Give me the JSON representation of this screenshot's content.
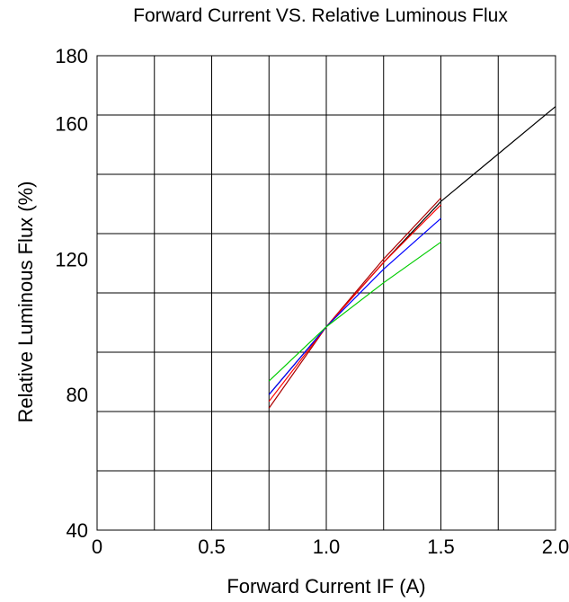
{
  "chart_data": {
    "type": "line",
    "title": "Forward Current VS. Relative Luminous Flux",
    "xlabel": "Forward  Current  IF  (A)",
    "ylabel": "Relative  Luminous  Flux  (%)",
    "xlim": [
      0,
      2.0
    ],
    "ylim": [
      40,
      180
    ],
    "grid": true,
    "x_ticks": [
      {
        "value": 0,
        "label": "0"
      },
      {
        "value": 0.5,
        "label": "0.5"
      },
      {
        "value": 1.0,
        "label": "1.0"
      },
      {
        "value": 1.5,
        "label": "1.5"
      },
      {
        "value": 2.0,
        "label": "2.0"
      }
    ],
    "y_ticks": [
      {
        "value": 40,
        "label": "40"
      },
      {
        "value": 80,
        "label": "80"
      },
      {
        "value": 120,
        "label": "120"
      },
      {
        "value": 160,
        "label": "160"
      },
      {
        "value": 180,
        "label": "180"
      }
    ],
    "series": [
      {
        "color": "#000000",
        "x": [
          0.75,
          1.0,
          1.25,
          1.5,
          1.75,
          2.0
        ],
        "y": [
          80,
          100,
          119,
          137,
          151,
          165
        ]
      },
      {
        "color": "#aa0000",
        "x": [
          0.75,
          1.0,
          1.25,
          1.5
        ],
        "y": [
          76,
          100,
          120,
          138
        ]
      },
      {
        "color": "#ff0000",
        "x": [
          0.75,
          1.0,
          1.25,
          1.5
        ],
        "y": [
          78,
          100,
          119,
          136
        ]
      },
      {
        "color": "#0000ff",
        "x": [
          0.75,
          1.0,
          1.25,
          1.5
        ],
        "y": [
          80,
          100,
          117,
          132
        ]
      },
      {
        "color": "#00cc00",
        "x": [
          0.75,
          1.0,
          1.25,
          1.5
        ],
        "y": [
          84,
          100,
          113,
          125
        ]
      }
    ]
  }
}
